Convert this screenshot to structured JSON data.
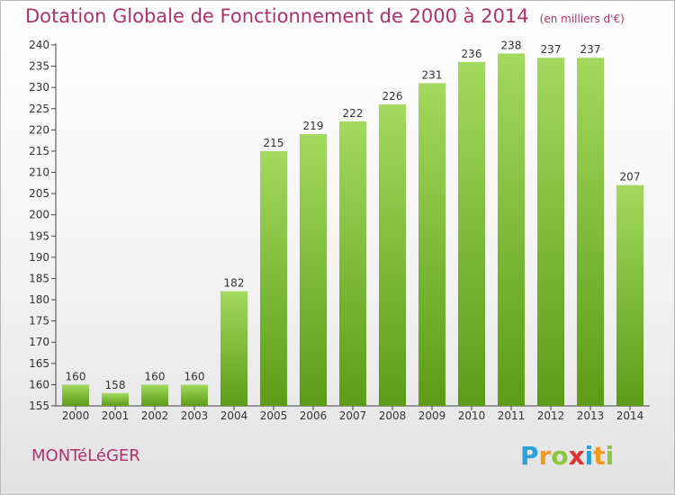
{
  "header": {
    "title": "Dotation Globale de Fonctionnement de 2000 à 2014",
    "subtitle": "(en milliers d'€)"
  },
  "footer": {
    "town": "MONTéLéGER",
    "logo": "Proxiti"
  },
  "colors": {
    "bar_top": "#9fd65a",
    "bar_bottom": "#5f9f1a",
    "title": "#b0306d",
    "axis_text": "#333333"
  },
  "chart_data": {
    "type": "bar",
    "title": "Dotation Globale de Fonctionnement de 2000 à 2014",
    "subtitle": "(en milliers d'€)",
    "xlabel": "",
    "ylabel": "",
    "categories": [
      "2000",
      "2001",
      "2002",
      "2003",
      "2004",
      "2005",
      "2006",
      "2007",
      "2008",
      "2009",
      "2010",
      "2011",
      "2012",
      "2013",
      "2014"
    ],
    "values": [
      160,
      158,
      160,
      160,
      182,
      215,
      219,
      222,
      226,
      231,
      236,
      238,
      237,
      237,
      207
    ],
    "ylim": [
      155,
      240
    ],
    "ytick_step": 5,
    "grid": false,
    "data_labels": true
  }
}
